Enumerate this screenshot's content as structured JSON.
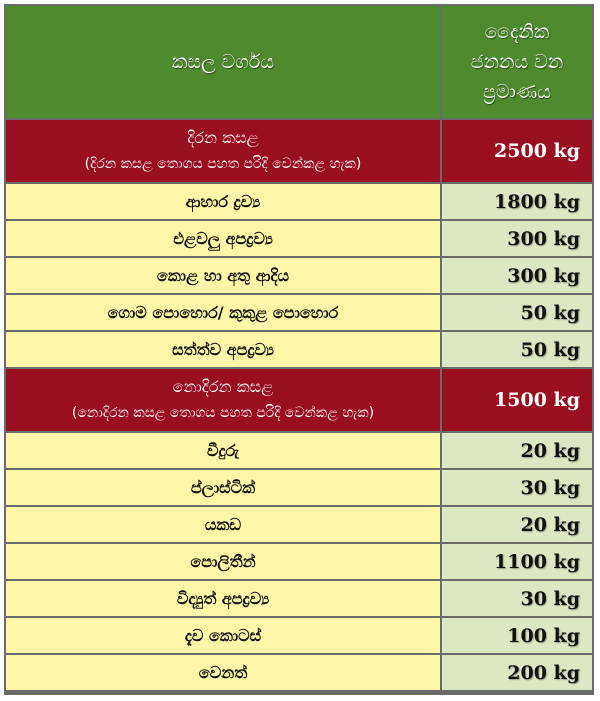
{
  "header": {
    "col1": "කසල වර්ගය",
    "col2_line1": "දෛනික",
    "col2_line2": "ජනනය වන",
    "col2_line3": "ප්‍රමාණය"
  },
  "rows": [
    {
      "type": "category",
      "label": "දිරන කසළ",
      "sublabel": "(දිරන කසළ තොගය පහත පරිදි වෙන්කළ හැක)",
      "value": "2500 kg"
    },
    {
      "type": "item",
      "label": "ආහාර ද්‍රව්‍ය",
      "value": "1800 kg"
    },
    {
      "type": "item",
      "label": "එළවලු අපද්‍රව්‍ය",
      "value": "300 kg"
    },
    {
      "type": "item",
      "label": "කොළ හා අතු ආදිය",
      "value": "300 kg"
    },
    {
      "type": "item",
      "label": "ගොම පොහොර/ කුකුළ පොහොර",
      "value": "50 kg"
    },
    {
      "type": "item",
      "label": "සත්ත්ව අපද්‍රව්‍ය",
      "value": "50 kg"
    },
    {
      "type": "category",
      "label": "නොදිරන කසළ",
      "sublabel": "(නොදිරන කසළ තොගය පහත පරිදි වෙන්කළ හැක)",
      "value": "1500 kg"
    },
    {
      "type": "item",
      "label": "වීදුරු",
      "value": "20 kg"
    },
    {
      "type": "item",
      "label": "ප්ලාස්ටික්",
      "value": "30 kg"
    },
    {
      "type": "item",
      "label": "යකඩ",
      "value": "20 kg"
    },
    {
      "type": "item",
      "label": "පොලිතීන්",
      "value": "1100 kg"
    },
    {
      "type": "item",
      "label": "විද්‍යුත් අපද්‍රව්‍ය",
      "value": "30 kg"
    },
    {
      "type": "item",
      "label": "දැව කොටස්",
      "value": "100 kg"
    },
    {
      "type": "item",
      "label": "වෙනත්",
      "value": "200 kg"
    }
  ],
  "colors": {
    "header": "#4e8a2e",
    "category": "#9a0e22",
    "item_label": "#fbf6a8",
    "item_value": "#dce7c4",
    "border": "#6a6a6a"
  }
}
